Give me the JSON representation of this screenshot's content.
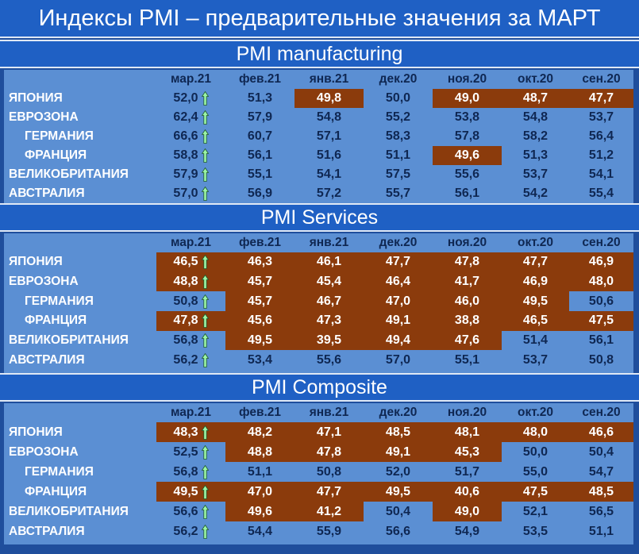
{
  "title": "Индексы PMI – предварительные значения за МАРТ",
  "colors": {
    "background": "#1f4e9c",
    "panel": "#5b8fd3",
    "highlight": "#8b3b0c",
    "arrow": "#9cf5a6"
  },
  "columns": [
    "мар.21",
    "фев.21",
    "янв.21",
    "дек.20",
    "ноя.20",
    "окт.20",
    "сен.20"
  ],
  "sections": [
    {
      "title": "PMI manufacturing",
      "rows": [
        {
          "country": "ЯПОНИЯ",
          "indent": false,
          "values": [
            "52,0",
            "51,3",
            "49,8",
            "50,0",
            "49,0",
            "48,7",
            "47,7"
          ],
          "highlight": [
            false,
            false,
            true,
            false,
            true,
            true,
            true
          ]
        },
        {
          "country": "ЕВРОЗОНА",
          "indent": false,
          "values": [
            "62,4",
            "57,9",
            "54,8",
            "55,2",
            "53,8",
            "54,8",
            "53,7"
          ],
          "highlight": [
            false,
            false,
            false,
            false,
            false,
            false,
            false
          ]
        },
        {
          "country": "ГЕРМАНИЯ",
          "indent": true,
          "values": [
            "66,6",
            "60,7",
            "57,1",
            "58,3",
            "57,8",
            "58,2",
            "56,4"
          ],
          "highlight": [
            false,
            false,
            false,
            false,
            false,
            false,
            false
          ]
        },
        {
          "country": "ФРАНЦИЯ",
          "indent": true,
          "values": [
            "58,8",
            "56,1",
            "51,6",
            "51,1",
            "49,6",
            "51,3",
            "51,2"
          ],
          "highlight": [
            false,
            false,
            false,
            false,
            true,
            false,
            false
          ]
        },
        {
          "country": "ВЕЛИКОБРИТАНИЯ",
          "indent": false,
          "values": [
            "57,9",
            "55,1",
            "54,1",
            "57,5",
            "55,6",
            "53,7",
            "54,1"
          ],
          "highlight": [
            false,
            false,
            false,
            false,
            false,
            false,
            false
          ]
        },
        {
          "country": "АВСТРАЛИЯ",
          "indent": false,
          "values": [
            "57,0",
            "56,9",
            "57,2",
            "55,7",
            "56,1",
            "54,2",
            "55,4"
          ],
          "highlight": [
            false,
            false,
            false,
            false,
            false,
            false,
            false
          ]
        }
      ]
    },
    {
      "title": "PMI Services",
      "rows": [
        {
          "country": "ЯПОНИЯ",
          "indent": false,
          "values": [
            "46,5",
            "46,3",
            "46,1",
            "47,7",
            "47,8",
            "47,7",
            "46,9"
          ],
          "highlight": [
            true,
            true,
            true,
            true,
            true,
            true,
            true
          ]
        },
        {
          "country": "ЕВРОЗОНА",
          "indent": false,
          "values": [
            "48,8",
            "45,7",
            "45,4",
            "46,4",
            "41,7",
            "46,9",
            "48,0"
          ],
          "highlight": [
            true,
            true,
            true,
            true,
            true,
            true,
            true
          ]
        },
        {
          "country": "ГЕРМАНИЯ",
          "indent": true,
          "values": [
            "50,8",
            "45,7",
            "46,7",
            "47,0",
            "46,0",
            "49,5",
            "50,6"
          ],
          "highlight": [
            false,
            true,
            true,
            true,
            true,
            true,
            false
          ]
        },
        {
          "country": "ФРАНЦИЯ",
          "indent": true,
          "values": [
            "47,8",
            "45,6",
            "47,3",
            "49,1",
            "38,8",
            "46,5",
            "47,5"
          ],
          "highlight": [
            true,
            true,
            true,
            true,
            true,
            true,
            true
          ]
        },
        {
          "country": "ВЕЛИКОБРИТАНИЯ",
          "indent": false,
          "values": [
            "56,8",
            "49,5",
            "39,5",
            "49,4",
            "47,6",
            "51,4",
            "56,1"
          ],
          "highlight": [
            false,
            true,
            true,
            true,
            true,
            false,
            false
          ]
        },
        {
          "country": "АВСТРАЛИЯ",
          "indent": false,
          "values": [
            "56,2",
            "53,4",
            "55,6",
            "57,0",
            "55,1",
            "53,7",
            "50,8"
          ],
          "highlight": [
            false,
            false,
            false,
            false,
            false,
            false,
            false
          ]
        }
      ]
    },
    {
      "title": "PMI Composite",
      "rows": [
        {
          "country": "ЯПОНИЯ",
          "indent": false,
          "values": [
            "48,3",
            "48,2",
            "47,1",
            "48,5",
            "48,1",
            "48,0",
            "46,6"
          ],
          "highlight": [
            true,
            true,
            true,
            true,
            true,
            true,
            true
          ]
        },
        {
          "country": "ЕВРОЗОНА",
          "indent": false,
          "values": [
            "52,5",
            "48,8",
            "47,8",
            "49,1",
            "45,3",
            "50,0",
            "50,4"
          ],
          "highlight": [
            false,
            true,
            true,
            true,
            true,
            false,
            false
          ]
        },
        {
          "country": "ГЕРМАНИЯ",
          "indent": true,
          "values": [
            "56,8",
            "51,1",
            "50,8",
            "52,0",
            "51,7",
            "55,0",
            "54,7"
          ],
          "highlight": [
            false,
            false,
            false,
            false,
            false,
            false,
            false
          ]
        },
        {
          "country": "ФРАНЦИЯ",
          "indent": true,
          "values": [
            "49,5",
            "47,0",
            "47,7",
            "49,5",
            "40,6",
            "47,5",
            "48,5"
          ],
          "highlight": [
            true,
            true,
            true,
            true,
            true,
            true,
            true
          ]
        },
        {
          "country": "ВЕЛИКОБРИТАНИЯ",
          "indent": false,
          "values": [
            "56,6",
            "49,6",
            "41,2",
            "50,4",
            "49,0",
            "52,1",
            "56,5"
          ],
          "highlight": [
            false,
            true,
            true,
            false,
            true,
            false,
            false
          ]
        },
        {
          "country": "АВСТРАЛИЯ",
          "indent": false,
          "values": [
            "56,2",
            "54,4",
            "55,9",
            "56,6",
            "54,9",
            "53,5",
            "51,1"
          ],
          "highlight": [
            false,
            false,
            false,
            false,
            false,
            false,
            false
          ]
        }
      ]
    }
  ]
}
